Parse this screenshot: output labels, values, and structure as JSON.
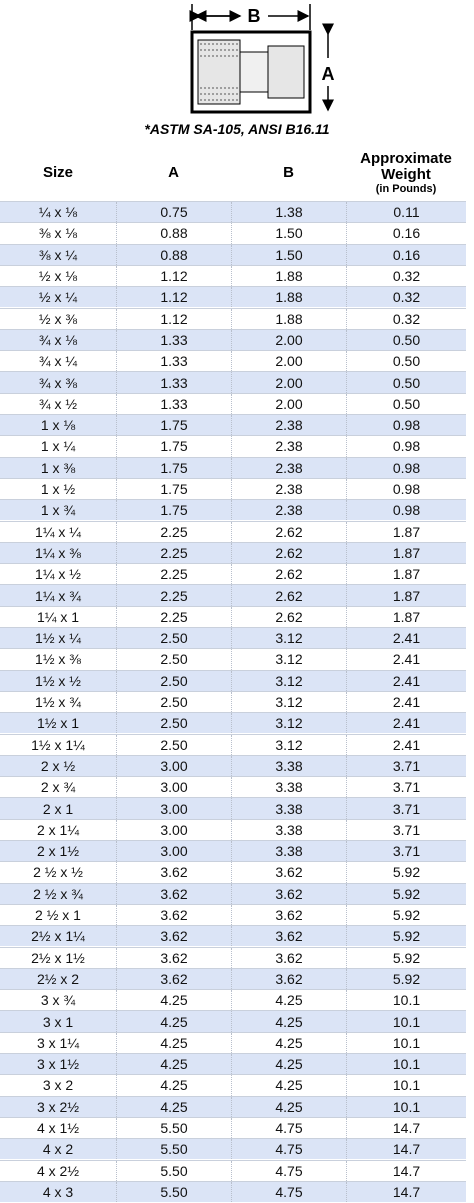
{
  "diagram": {
    "label_a": "A",
    "label_b": "B",
    "caption": "*ASTM SA-105, ANSI B16.11"
  },
  "table": {
    "header": [
      "Size",
      "A",
      "B",
      "Approximate Weight"
    ],
    "header_note": "(in Pounds)",
    "rows": [
      [
        "¼ x ⅛",
        "0.75",
        "1.38",
        "0.11"
      ],
      [
        "⅜ x ⅛",
        "0.88",
        "1.50",
        "0.16"
      ],
      [
        "⅜ x ¼",
        "0.88",
        "1.50",
        "0.16"
      ],
      [
        "½ x ⅛",
        "1.12",
        "1.88",
        "0.32"
      ],
      [
        "½ x ¼",
        "1.12",
        "1.88",
        "0.32"
      ],
      [
        "½ x ⅜",
        "1.12",
        "1.88",
        "0.32"
      ],
      [
        "¾ x ⅛",
        "1.33",
        "2.00",
        "0.50"
      ],
      [
        "¾ x ¼",
        "1.33",
        "2.00",
        "0.50"
      ],
      [
        "¾ x ⅜",
        "1.33",
        "2.00",
        "0.50"
      ],
      [
        "¾ x ½",
        "1.33",
        "2.00",
        "0.50"
      ],
      [
        "1 x ⅛",
        "1.75",
        "2.38",
        "0.98"
      ],
      [
        "1 x ¼",
        "1.75",
        "2.38",
        "0.98"
      ],
      [
        "1 x ⅜",
        "1.75",
        "2.38",
        "0.98"
      ],
      [
        "1 x ½",
        "1.75",
        "2.38",
        "0.98"
      ],
      [
        "1 x ¾",
        "1.75",
        "2.38",
        "0.98"
      ],
      [
        "1¼ x ¼",
        "2.25",
        "2.62",
        "1.87"
      ],
      [
        "1¼ x ⅜",
        "2.25",
        "2.62",
        "1.87"
      ],
      [
        "1¼ x ½",
        "2.25",
        "2.62",
        "1.87"
      ],
      [
        "1¼ x ¾",
        "2.25",
        "2.62",
        "1.87"
      ],
      [
        "1¼ x 1",
        "2.25",
        "2.62",
        "1.87"
      ],
      [
        "1½ x ¼",
        "2.50",
        "3.12",
        "2.41"
      ],
      [
        "1½ x ⅜",
        "2.50",
        "3.12",
        "2.41"
      ],
      [
        "1½ x ½",
        "2.50",
        "3.12",
        "2.41"
      ],
      [
        "1½ x ¾",
        "2.50",
        "3.12",
        "2.41"
      ],
      [
        "1½ x 1",
        "2.50",
        "3.12",
        "2.41"
      ],
      [
        "1½ x 1¼",
        "2.50",
        "3.12",
        "2.41"
      ],
      [
        "2 x ½",
        "3.00",
        "3.38",
        "3.71"
      ],
      [
        "2 x ¾",
        "3.00",
        "3.38",
        "3.71"
      ],
      [
        "2 x 1",
        "3.00",
        "3.38",
        "3.71"
      ],
      [
        "2 x 1¼",
        "3.00",
        "3.38",
        "3.71"
      ],
      [
        "2 x 1½",
        "3.00",
        "3.38",
        "3.71"
      ],
      [
        "2 ½ x ½",
        "3.62",
        "3.62",
        "5.92"
      ],
      [
        "2 ½ x ¾",
        "3.62",
        "3.62",
        "5.92"
      ],
      [
        "2 ½ x 1",
        "3.62",
        "3.62",
        "5.92"
      ],
      [
        "2½ x 1¼",
        "3.62",
        "3.62",
        "5.92"
      ],
      [
        "2½ x 1½",
        "3.62",
        "3.62",
        "5.92"
      ],
      [
        "2½ x 2",
        "3.62",
        "3.62",
        "5.92"
      ],
      [
        "3 x ¾",
        "4.25",
        "4.25",
        "10.1"
      ],
      [
        "3 x 1",
        "4.25",
        "4.25",
        "10.1"
      ],
      [
        "3 x 1¼",
        "4.25",
        "4.25",
        "10.1"
      ],
      [
        "3 x 1½",
        "4.25",
        "4.25",
        "10.1"
      ],
      [
        "3 x 2",
        "4.25",
        "4.25",
        "10.1"
      ],
      [
        "3 x 2½",
        "4.25",
        "4.25",
        "10.1"
      ],
      [
        "4 x 1½",
        "5.50",
        "4.75",
        "14.7"
      ],
      [
        "4 x 2",
        "5.50",
        "4.75",
        "14.7"
      ],
      [
        "4 x 2½",
        "5.50",
        "4.75",
        "14.7"
      ],
      [
        "4 x 3",
        "5.50",
        "4.75",
        "14.7"
      ]
    ]
  }
}
